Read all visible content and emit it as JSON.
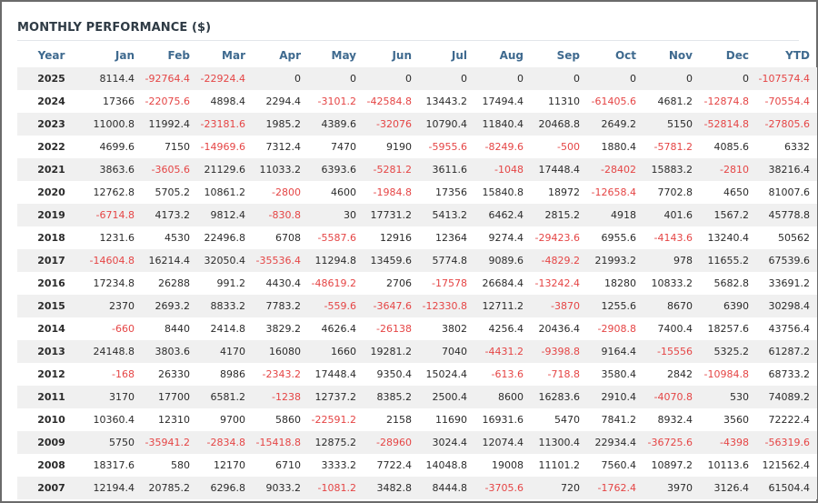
{
  "title": "MONTHLY PERFORMANCE ($)",
  "colors": {
    "negative": "#e54545",
    "header_text": "#3f6a8f",
    "stripe": "#f0f0f0"
  },
  "headers": [
    "Year",
    "Jan",
    "Feb",
    "Mar",
    "Apr",
    "May",
    "Jun",
    "Jul",
    "Aug",
    "Sep",
    "Oct",
    "Nov",
    "Dec",
    "YTD"
  ],
  "rows": [
    [
      "2025",
      "8114.4",
      "-92764.4",
      "-22924.4",
      "0",
      "0",
      "0",
      "0",
      "0",
      "0",
      "0",
      "0",
      "0",
      "-107574.4"
    ],
    [
      "2024",
      "17366",
      "-22075.6",
      "4898.4",
      "2294.4",
      "-3101.2",
      "-42584.8",
      "13443.2",
      "17494.4",
      "11310",
      "-61405.6",
      "4681.2",
      "-12874.8",
      "-70554.4"
    ],
    [
      "2023",
      "11000.8",
      "11992.4",
      "-23181.6",
      "1985.2",
      "4389.6",
      "-32076",
      "10790.4",
      "11840.4",
      "20468.8",
      "2649.2",
      "5150",
      "-52814.8",
      "-27805.6"
    ],
    [
      "2022",
      "4699.6",
      "7150",
      "-14969.6",
      "7312.4",
      "7470",
      "9190",
      "-5955.6",
      "-8249.6",
      "-500",
      "1880.4",
      "-5781.2",
      "4085.6",
      "6332"
    ],
    [
      "2021",
      "3863.6",
      "-3605.6",
      "21129.6",
      "11033.2",
      "6393.6",
      "-5281.2",
      "3611.6",
      "-1048",
      "17448.4",
      "-28402",
      "15883.2",
      "-2810",
      "38216.4"
    ],
    [
      "2020",
      "12762.8",
      "5705.2",
      "10861.2",
      "-2800",
      "4600",
      "-1984.8",
      "17356",
      "15840.8",
      "18972",
      "-12658.4",
      "7702.8",
      "4650",
      "81007.6"
    ],
    [
      "2019",
      "-6714.8",
      "4173.2",
      "9812.4",
      "-830.8",
      "30",
      "17731.2",
      "5413.2",
      "6462.4",
      "2815.2",
      "4918",
      "401.6",
      "1567.2",
      "45778.8"
    ],
    [
      "2018",
      "1231.6",
      "4530",
      "22496.8",
      "6708",
      "-5587.6",
      "12916",
      "12364",
      "9274.4",
      "-29423.6",
      "6955.6",
      "-4143.6",
      "13240.4",
      "50562"
    ],
    [
      "2017",
      "-14604.8",
      "16214.4",
      "32050.4",
      "-35536.4",
      "11294.8",
      "13459.6",
      "5774.8",
      "9089.6",
      "-4829.2",
      "21993.2",
      "978",
      "11655.2",
      "67539.6"
    ],
    [
      "2016",
      "17234.8",
      "26288",
      "991.2",
      "4430.4",
      "-48619.2",
      "2706",
      "-17578",
      "26684.4",
      "-13242.4",
      "18280",
      "10833.2",
      "5682.8",
      "33691.2"
    ],
    [
      "2015",
      "2370",
      "2693.2",
      "8833.2",
      "7783.2",
      "-559.6",
      "-3647.6",
      "-12330.8",
      "12711.2",
      "-3870",
      "1255.6",
      "8670",
      "6390",
      "30298.4"
    ],
    [
      "2014",
      "-660",
      "8440",
      "2414.8",
      "3829.2",
      "4626.4",
      "-26138",
      "3802",
      "4256.4",
      "20436.4",
      "-2908.8",
      "7400.4",
      "18257.6",
      "43756.4"
    ],
    [
      "2013",
      "24148.8",
      "3803.6",
      "4170",
      "16080",
      "1660",
      "19281.2",
      "7040",
      "-4431.2",
      "-9398.8",
      "9164.4",
      "-15556",
      "5325.2",
      "61287.2"
    ],
    [
      "2012",
      "-168",
      "26330",
      "8986",
      "-2343.2",
      "17448.4",
      "9350.4",
      "15024.4",
      "-613.6",
      "-718.8",
      "3580.4",
      "2842",
      "-10984.8",
      "68733.2"
    ],
    [
      "2011",
      "3170",
      "17700",
      "6581.2",
      "-1238",
      "12737.2",
      "8385.2",
      "2500.4",
      "8600",
      "16283.6",
      "2910.4",
      "-4070.8",
      "530",
      "74089.2"
    ],
    [
      "2010",
      "10360.4",
      "12310",
      "9700",
      "5860",
      "-22591.2",
      "2158",
      "11690",
      "16931.6",
      "5470",
      "7841.2",
      "8932.4",
      "3560",
      "72222.4"
    ],
    [
      "2009",
      "5750",
      "-35941.2",
      "-2834.8",
      "-15418.8",
      "12875.2",
      "-28960",
      "3024.4",
      "12074.4",
      "11300.4",
      "22934.4",
      "-36725.6",
      "-4398",
      "-56319.6"
    ],
    [
      "2008",
      "18317.6",
      "580",
      "12170",
      "6710",
      "3333.2",
      "7722.4",
      "14048.8",
      "19008",
      "11101.2",
      "7560.4",
      "10897.2",
      "10113.6",
      "121562.4"
    ],
    [
      "2007",
      "12194.4",
      "20785.2",
      "6296.8",
      "9033.2",
      "-1081.2",
      "3482.8",
      "8444.8",
      "-3705.6",
      "720",
      "-1762.4",
      "3970",
      "3126.4",
      "61504.4"
    ]
  ]
}
